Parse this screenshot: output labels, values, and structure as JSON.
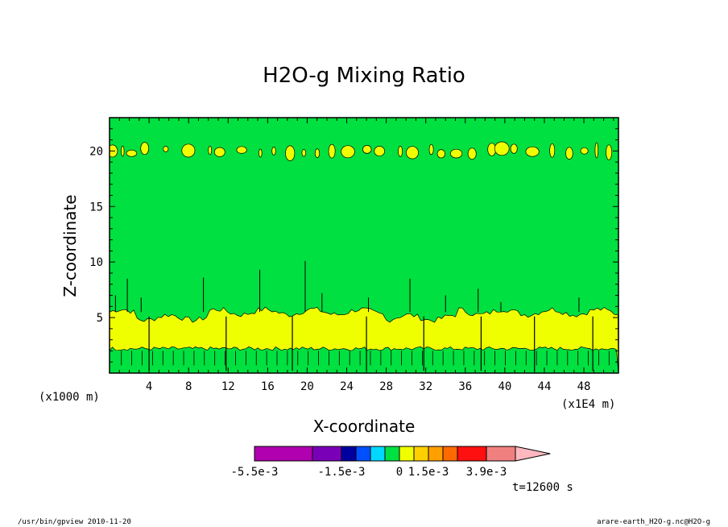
{
  "chart_data": {
    "type": "contour",
    "title": "H2O-g Mixing Ratio",
    "xlabel": "X-coordinate",
    "ylabel": "Z-coordinate",
    "x_units": "(x1E4 m)",
    "y_units": "(x1000 m)",
    "xlim": [
      0,
      51.5
    ],
    "ylim": [
      0,
      23
    ],
    "xticks": [
      4,
      8,
      12,
      16,
      20,
      24,
      28,
      32,
      36,
      40,
      44,
      48
    ],
    "yticks": [
      5,
      10,
      15,
      20
    ],
    "grid": false,
    "time_label": "t=12600 s",
    "colorbar": {
      "labels": [
        {
          "text": "-5.5e-3",
          "index": 0
        },
        {
          "text": "-1.5e-3",
          "index": 2
        },
        {
          "text": "0",
          "index": 6
        },
        {
          "text": "1.5e-3",
          "index": 8
        },
        {
          "text": "3.9e-3",
          "index": 11
        }
      ],
      "colors": [
        "#b000b0",
        "#7a00b8",
        "#0000a0",
        "#0050ff",
        "#00d8ff",
        "#00e040",
        "#f0ff00",
        "#ffd000",
        "#ffa000",
        "#ff6a00",
        "#ff1010",
        "#f08080",
        "#ffb8c0"
      ],
      "widths": [
        2,
        1,
        0.5,
        0.5,
        0.5,
        0.5,
        0.5,
        0.5,
        0.5,
        0.5,
        1,
        1,
        1.2
      ]
    },
    "bands": {
      "lower_green_top": 2.2,
      "yellow_top": 5.5,
      "upper_yellow_level": 20
    }
  },
  "footer": {
    "left": "/usr/bin/gpview   2010-11-20",
    "right": "arare-earth_H2O-g.nc@H2O-g"
  },
  "colors": {
    "green": "#00e040",
    "yellow": "#f0ff00"
  }
}
